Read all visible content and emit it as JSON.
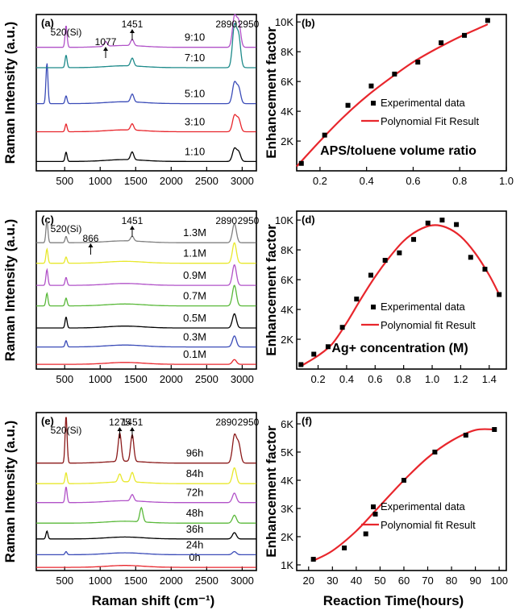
{
  "figure": {
    "x_axis_title_left": "Raman shift (cm⁻¹)",
    "x_axis_title_right": "Reaction Time(hours)"
  },
  "chart_data": [
    {
      "panel": "(a)",
      "type": "line",
      "ylabel": "Raman Intensity (a.u.)",
      "xlim": [
        100,
        3200
      ],
      "xticks": [
        500,
        1000,
        1500,
        2000,
        2500,
        3000
      ],
      "xtick_labels": [
        "500",
        "1000",
        "1500",
        "2000",
        "2500",
        "3000"
      ],
      "annotations": [
        {
          "text": "520(Si)",
          "x": 520
        },
        {
          "text": "1077",
          "x": 1077
        },
        {
          "text": "1451",
          "x": 1451
        },
        {
          "text": "2890",
          "x": 2890
        },
        {
          "text": "2950",
          "x": 2950
        }
      ],
      "series": [
        {
          "name": "1:10",
          "color": "#000000",
          "base": 0.06,
          "peaks": [
            {
              "x": 520,
              "h": 0.06
            },
            {
              "x": 1450,
              "h": 0.05
            },
            {
              "x": 2890,
              "h": 0.08
            },
            {
              "x": 2950,
              "h": 0.06
            }
          ]
        },
        {
          "name": "3:10",
          "color": "#e8262c",
          "base": 0.25,
          "peaks": [
            {
              "x": 520,
              "h": 0.05
            },
            {
              "x": 1450,
              "h": 0.04
            },
            {
              "x": 2890,
              "h": 0.1
            },
            {
              "x": 2950,
              "h": 0.08
            }
          ]
        },
        {
          "name": "5:10",
          "color": "#3b4cb8",
          "base": 0.43,
          "peaks": [
            {
              "x": 250,
              "h": 0.26
            },
            {
              "x": 520,
              "h": 0.05
            },
            {
              "x": 1451,
              "h": 0.05
            },
            {
              "x": 2890,
              "h": 0.13
            },
            {
              "x": 2950,
              "h": 0.1
            }
          ]
        },
        {
          "name": "7:10",
          "color": "#1d8a8a",
          "base": 0.66,
          "peaks": [
            {
              "x": 520,
              "h": 0.08
            },
            {
              "x": 1451,
              "h": 0.05
            },
            {
              "x": 2890,
              "h": 0.26
            },
            {
              "x": 2950,
              "h": 0.2
            }
          ]
        },
        {
          "name": "9:10",
          "color": "#b152c8",
          "base": 0.79,
          "peaks": [
            {
              "x": 520,
              "h": 0.14
            },
            {
              "x": 1077,
              "h": 0.03
            },
            {
              "x": 1451,
              "h": 0.04
            },
            {
              "x": 2890,
              "h": 0.19
            },
            {
              "x": 2950,
              "h": 0.16
            }
          ]
        }
      ]
    },
    {
      "panel": "(b)",
      "type": "scatter",
      "ylabel": "Enhancement factor",
      "xlim": [
        0.1,
        1.0
      ],
      "ylim": [
        0,
        10500
      ],
      "xticks": [
        0.2,
        0.4,
        0.6,
        0.8,
        1.0
      ],
      "xtick_labels": [
        "0.2",
        "0.4",
        "0.6",
        "0.8",
        "1.0"
      ],
      "yticks": [
        2000,
        4000,
        6000,
        8000,
        10000
      ],
      "ytick_labels": [
        "2K",
        "4K",
        "6K",
        "8K",
        "10K"
      ],
      "condition_label": "APS/toluene volume ratio",
      "legend": [
        "Experimental data",
        "Polynomial Fit Result"
      ],
      "x": [
        0.12,
        0.22,
        0.32,
        0.42,
        0.52,
        0.62,
        0.72,
        0.82,
        0.92
      ],
      "y": [
        500,
        2400,
        4400,
        5700,
        6500,
        7300,
        8600,
        9100,
        10100
      ],
      "fit_x": [
        0.1,
        0.2,
        0.3,
        0.4,
        0.5,
        0.6,
        0.7,
        0.8,
        0.9,
        0.92
      ],
      "fit_y": [
        300,
        2000,
        3600,
        5000,
        6200,
        7300,
        8200,
        9000,
        9700,
        9850
      ],
      "marker_color": "#000000",
      "fit_color": "#e8262c"
    },
    {
      "panel": "(c)",
      "type": "line",
      "ylabel": "Raman Intensity (a.u.)",
      "xlim": [
        100,
        3200
      ],
      "xticks": [
        500,
        1000,
        1500,
        2000,
        2500,
        3000
      ],
      "xtick_labels": [
        "500",
        "1000",
        "1500",
        "2000",
        "2500",
        "3000"
      ],
      "annotations": [
        {
          "text": "520(Si)",
          "x": 520
        },
        {
          "text": "866",
          "x": 866
        },
        {
          "text": "1451",
          "x": 1451
        },
        {
          "text": "2890",
          "x": 2890
        },
        {
          "text": "2950",
          "x": 2950
        }
      ],
      "series": [
        {
          "name": "0.1M",
          "color": "#e8262c",
          "base": 0.03,
          "peaks": [
            {
              "x": 2890,
              "h": 0.03
            }
          ]
        },
        {
          "name": "0.3M",
          "color": "#3b4cb8",
          "base": 0.14,
          "peaks": [
            {
              "x": 520,
              "h": 0.04
            },
            {
              "x": 2890,
              "h": 0.07
            }
          ]
        },
        {
          "name": "0.5M",
          "color": "#000000",
          "base": 0.26,
          "peaks": [
            {
              "x": 520,
              "h": 0.07
            },
            {
              "x": 2890,
              "h": 0.09
            }
          ]
        },
        {
          "name": "0.7M",
          "color": "#5ab93a",
          "base": 0.4,
          "peaks": [
            {
              "x": 250,
              "h": 0.08
            },
            {
              "x": 520,
              "h": 0.05
            },
            {
              "x": 2890,
              "h": 0.13
            }
          ]
        },
        {
          "name": "0.9M",
          "color": "#b152c8",
          "base": 0.53,
          "peaks": [
            {
              "x": 250,
              "h": 0.1
            },
            {
              "x": 520,
              "h": 0.05
            },
            {
              "x": 2890,
              "h": 0.13
            }
          ]
        },
        {
          "name": "1.1M",
          "color": "#e8e82c",
          "base": 0.67,
          "peaks": [
            {
              "x": 250,
              "h": 0.09
            },
            {
              "x": 520,
              "h": 0.04
            },
            {
              "x": 2890,
              "h": 0.13
            }
          ]
        },
        {
          "name": "1.3M",
          "color": "#808080",
          "base": 0.8,
          "peaks": [
            {
              "x": 250,
              "h": 0.14
            },
            {
              "x": 520,
              "h": 0.04
            },
            {
              "x": 1451,
              "h": 0.03
            },
            {
              "x": 2890,
              "h": 0.12
            }
          ]
        }
      ]
    },
    {
      "panel": "(d)",
      "type": "scatter",
      "ylabel": "Enhancement factor",
      "xlim": [
        0.05,
        1.52
      ],
      "ylim": [
        0,
        10600
      ],
      "xticks": [
        0.2,
        0.4,
        0.6,
        0.8,
        1.0,
        1.2,
        1.4
      ],
      "xtick_labels": [
        "0.2",
        "0.4",
        "0.6",
        "0.8",
        "1.0",
        "1.2",
        "1.4"
      ],
      "yticks": [
        2000,
        4000,
        6000,
        8000,
        10000
      ],
      "ytick_labels": [
        "2K",
        "4K",
        "6K",
        "8K",
        "10K"
      ],
      "condition_label": "Ag+ concentration (M)",
      "legend": [
        "Experimental data",
        "Polynomial fit Result"
      ],
      "x": [
        0.08,
        0.17,
        0.27,
        0.37,
        0.47,
        0.57,
        0.67,
        0.77,
        0.87,
        0.97,
        1.07,
        1.17,
        1.27,
        1.37,
        1.47
      ],
      "y": [
        300,
        1000,
        1500,
        2800,
        4700,
        6300,
        7300,
        7800,
        8700,
        9800,
        10000,
        9700,
        7500,
        6700,
        5000
      ],
      "fit_x": [
        0.08,
        0.2,
        0.3,
        0.4,
        0.5,
        0.6,
        0.7,
        0.8,
        0.9,
        1.0,
        1.1,
        1.2,
        1.3,
        1.4,
        1.47
      ],
      "fit_y": [
        200,
        900,
        1700,
        3100,
        4700,
        6200,
        7500,
        8600,
        9300,
        9650,
        9500,
        8900,
        7800,
        6300,
        5000
      ],
      "marker_color": "#000000",
      "fit_color": "#e8262c"
    },
    {
      "panel": "(e)",
      "type": "line",
      "ylabel": "Raman Intensity (a.u.)",
      "xlim": [
        100,
        3200
      ],
      "xticks": [
        500,
        1000,
        1500,
        2000,
        2500,
        3000
      ],
      "xtick_labels": [
        "500",
        "1000",
        "1500",
        "2000",
        "2500",
        "3000"
      ],
      "annotations": [
        {
          "text": "520(Si)",
          "x": 520
        },
        {
          "text": "1275",
          "x": 1275
        },
        {
          "text": "1451",
          "x": 1451
        },
        {
          "text": "2890",
          "x": 2890
        },
        {
          "text": "2950",
          "x": 2950
        }
      ],
      "series": [
        {
          "name": "0h",
          "color": "#e8262c",
          "base": 0.02,
          "peaks": []
        },
        {
          "name": "24h",
          "color": "#3b4cb8",
          "base": 0.1,
          "peaks": [
            {
              "x": 520,
              "h": 0.02
            },
            {
              "x": 2890,
              "h": 0.02
            }
          ]
        },
        {
          "name": "36h",
          "color": "#000000",
          "base": 0.2,
          "peaks": [
            {
              "x": 250,
              "h": 0.05
            },
            {
              "x": 2890,
              "h": 0.04
            }
          ]
        },
        {
          "name": "48h",
          "color": "#5ab93a",
          "base": 0.3,
          "peaks": [
            {
              "x": 1580,
              "h": 0.09
            },
            {
              "x": 2890,
              "h": 0.05
            }
          ]
        },
        {
          "name": "72h",
          "color": "#b152c8",
          "base": 0.43,
          "peaks": [
            {
              "x": 520,
              "h": 0.1
            },
            {
              "x": 1451,
              "h": 0.04
            },
            {
              "x": 2890,
              "h": 0.06
            }
          ]
        },
        {
          "name": "84h",
          "color": "#e8e82c",
          "base": 0.55,
          "peaks": [
            {
              "x": 520,
              "h": 0.07
            },
            {
              "x": 1275,
              "h": 0.05
            },
            {
              "x": 1451,
              "h": 0.06
            },
            {
              "x": 2890,
              "h": 0.1
            }
          ]
        },
        {
          "name": "96h",
          "color": "#8b1a1a",
          "base": 0.68,
          "peaks": [
            {
              "x": 520,
              "h": 0.3
            },
            {
              "x": 1275,
              "h": 0.18
            },
            {
              "x": 1451,
              "h": 0.17
            },
            {
              "x": 2890,
              "h": 0.17
            },
            {
              "x": 2950,
              "h": 0.12
            }
          ]
        }
      ]
    },
    {
      "panel": "(f)",
      "type": "scatter",
      "ylabel": "Enhancement factor",
      "xlim": [
        15,
        103
      ],
      "ylim": [
        800,
        6400
      ],
      "xticks": [
        20,
        30,
        40,
        50,
        60,
        70,
        80,
        90,
        100
      ],
      "xtick_labels": [
        "20",
        "30",
        "40",
        "50",
        "60",
        "70",
        "80",
        "90",
        "100"
      ],
      "yticks": [
        1000,
        2000,
        3000,
        4000,
        5000,
        6000
      ],
      "ytick_labels": [
        "1K",
        "2K",
        "3K",
        "4K",
        "5K",
        "6K"
      ],
      "legend": [
        "Experimental data",
        "Polynomial fit Result"
      ],
      "x": [
        22,
        35,
        44,
        48,
        60,
        73,
        86,
        98
      ],
      "y": [
        1200,
        1600,
        2100,
        2800,
        4000,
        5000,
        5600,
        5800
      ],
      "fit_x": [
        22,
        30,
        40,
        50,
        60,
        70,
        80,
        90,
        98
      ],
      "fit_y": [
        1150,
        1500,
        2200,
        3100,
        4000,
        4800,
        5400,
        5780,
        5800
      ],
      "marker_color": "#000000",
      "fit_color": "#e8262c"
    }
  ]
}
